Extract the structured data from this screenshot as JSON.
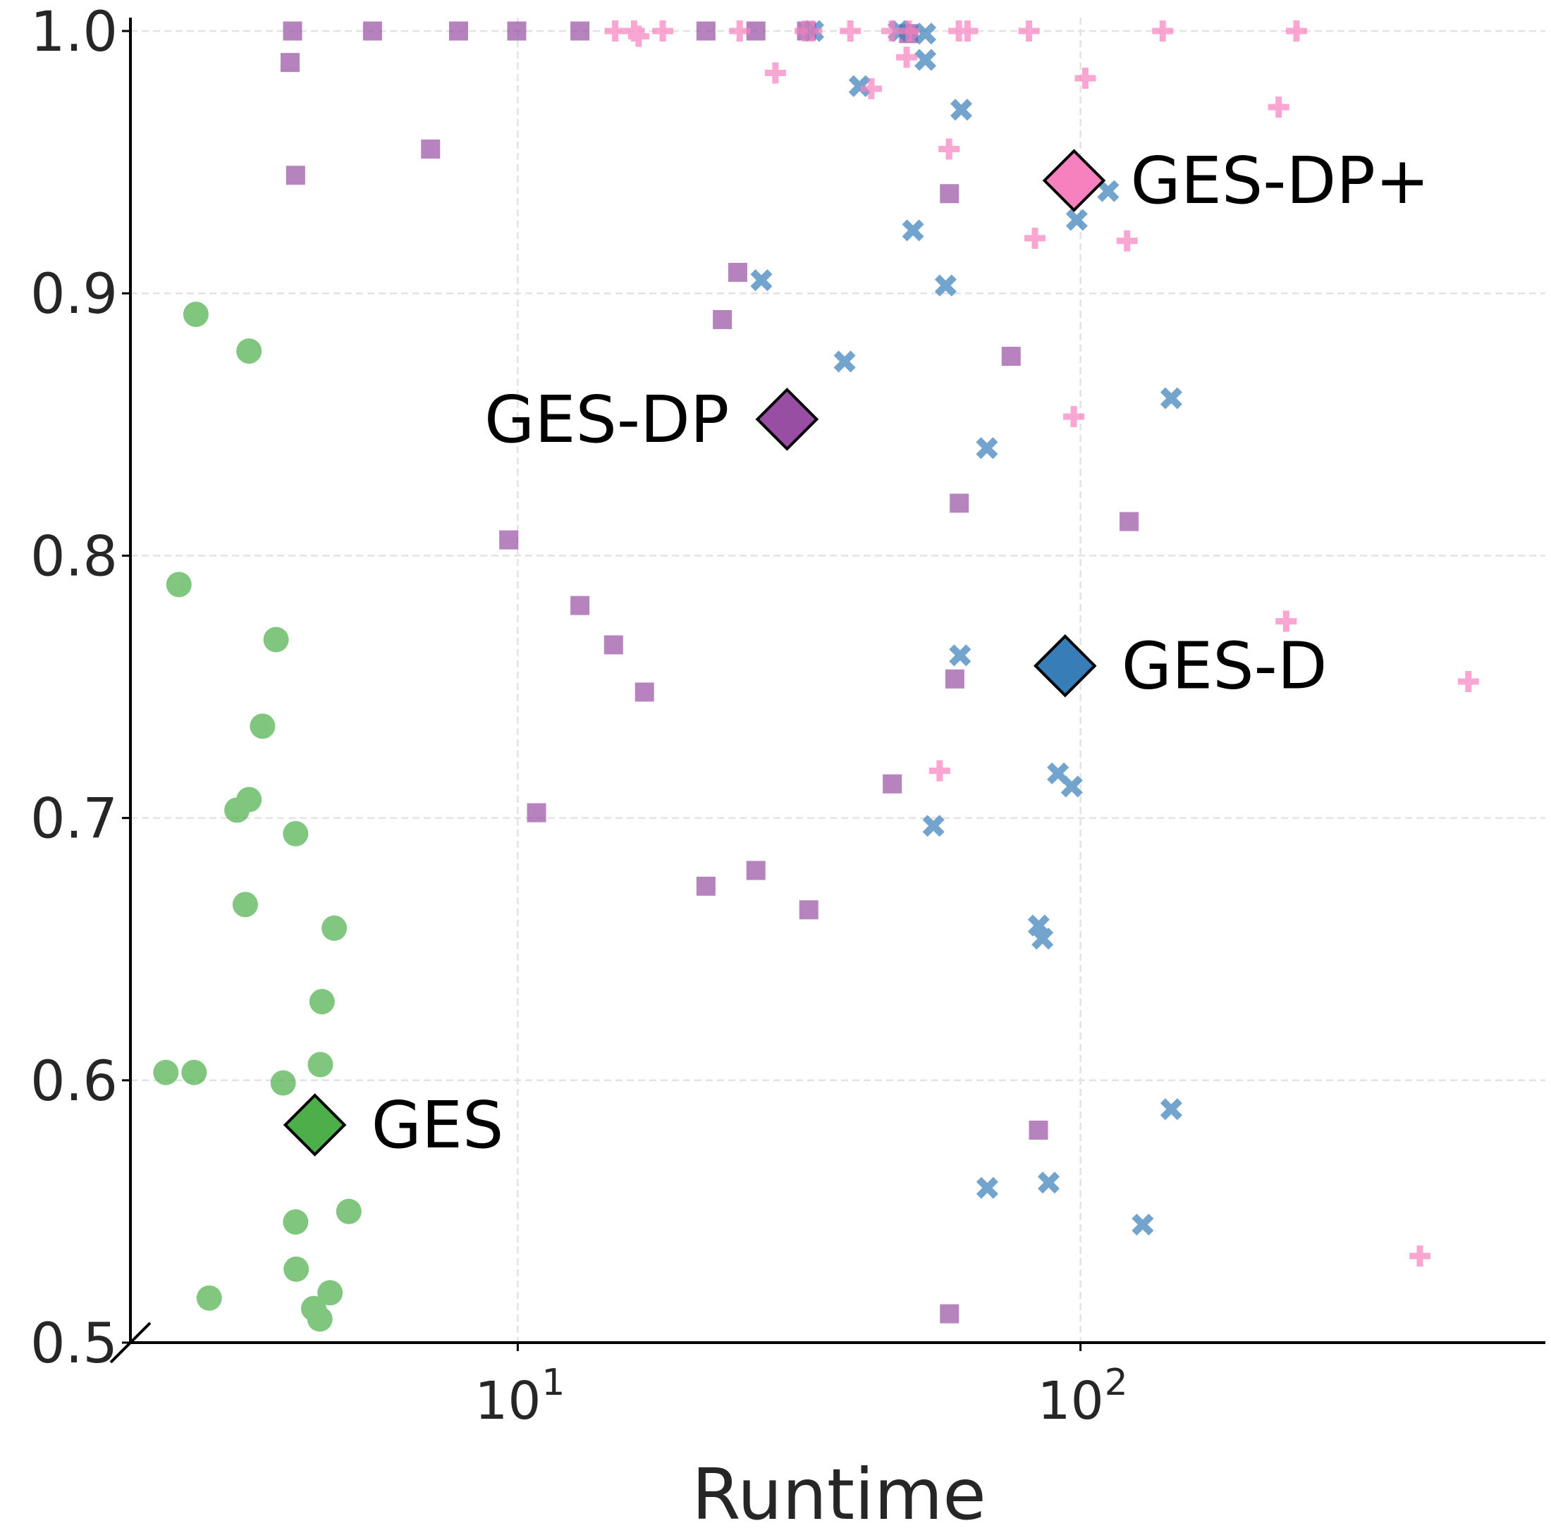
{
  "chart_data": {
    "type": "scatter",
    "title": "",
    "xlabel": "Runtime",
    "ylabel": "",
    "xscale": "log",
    "xlim": [
      2.05,
      670
    ],
    "ylim": [
      0.5,
      1.0
    ],
    "grid": true,
    "x_ticks": [
      {
        "value": 10,
        "base": "10",
        "exp": "1"
      },
      {
        "value": 100,
        "base": "10",
        "exp": "2"
      }
    ],
    "y_ticks": [
      {
        "value": 0.5,
        "label": "0.5"
      },
      {
        "value": 0.6,
        "label": "0.6"
      },
      {
        "value": 0.7,
        "label": "0.7"
      },
      {
        "value": 0.8,
        "label": "0.8"
      },
      {
        "value": 0.9,
        "label": "0.9"
      },
      {
        "value": 1.0,
        "label": "1.0"
      }
    ],
    "series": [
      {
        "key": "ges",
        "marker": "circle",
        "color": "#4daf4a",
        "points": [
          [
            2.68,
            0.892
          ],
          [
            3.33,
            0.878
          ],
          [
            2.5,
            0.789
          ],
          [
            3.72,
            0.768
          ],
          [
            3.52,
            0.735
          ],
          [
            3.17,
            0.703
          ],
          [
            3.33,
            0.707
          ],
          [
            4.03,
            0.694
          ],
          [
            3.28,
            0.667
          ],
          [
            4.72,
            0.658
          ],
          [
            4.49,
            0.63
          ],
          [
            2.37,
            0.603
          ],
          [
            2.66,
            0.603
          ],
          [
            3.83,
            0.599
          ],
          [
            4.46,
            0.606
          ],
          [
            4.03,
            0.546
          ],
          [
            5.01,
            0.55
          ],
          [
            4.04,
            0.528
          ],
          [
            2.83,
            0.517
          ],
          [
            4.64,
            0.519
          ],
          [
            4.34,
            0.513
          ],
          [
            4.45,
            0.509
          ]
        ]
      },
      {
        "key": "ges-dp",
        "marker": "square",
        "color": "#984ea3",
        "points": [
          [
            3.98,
            1.0
          ],
          [
            5.52,
            1.0
          ],
          [
            7.85,
            1.0
          ],
          [
            9.96,
            1.0
          ],
          [
            12.9,
            1.0
          ],
          [
            21.6,
            1.0
          ],
          [
            26.5,
            1.0
          ],
          [
            32.6,
            1.0
          ],
          [
            3.94,
            0.988
          ],
          [
            4.03,
            0.945
          ],
          [
            7.0,
            0.955
          ],
          [
            58.5,
            0.938
          ],
          [
            24.6,
            0.908
          ],
          [
            23.1,
            0.89
          ],
          [
            75.3,
            0.876
          ],
          [
            9.64,
            0.806
          ],
          [
            60.9,
            0.82
          ],
          [
            122,
            0.813
          ],
          [
            12.9,
            0.781
          ],
          [
            14.8,
            0.766
          ],
          [
            16.8,
            0.748
          ],
          [
            59.8,
            0.753
          ],
          [
            10.8,
            0.702
          ],
          [
            46.3,
            0.713
          ],
          [
            21.6,
            0.674
          ],
          [
            26.5,
            0.68
          ],
          [
            32.9,
            0.665
          ],
          [
            84.2,
            0.581
          ],
          [
            58.5,
            0.511
          ],
          [
            49.5,
            0.999
          ]
        ]
      },
      {
        "key": "ges-d",
        "marker": "x",
        "color": "#377eb8",
        "points": [
          [
            33.5,
            1.0
          ],
          [
            47.5,
            1.0
          ],
          [
            53.0,
            0.999
          ],
          [
            53.0,
            0.989
          ],
          [
            40.5,
            0.979
          ],
          [
            61.4,
            0.97
          ],
          [
            112,
            0.939
          ],
          [
            98.5,
            0.928
          ],
          [
            50.4,
            0.924
          ],
          [
            27.1,
            0.905
          ],
          [
            57.6,
            0.903
          ],
          [
            38.1,
            0.874
          ],
          [
            145,
            0.86
          ],
          [
            68.2,
            0.841
          ],
          [
            61.1,
            0.762
          ],
          [
            91.2,
            0.717
          ],
          [
            96.5,
            0.712
          ],
          [
            54.8,
            0.697
          ],
          [
            84.3,
            0.659
          ],
          [
            85.6,
            0.654
          ],
          [
            145,
            0.589
          ],
          [
            68.3,
            0.559
          ],
          [
            87.8,
            0.561
          ],
          [
            129,
            0.545
          ],
          [
            47.8,
            1.0
          ]
        ]
      },
      {
        "key": "ges-dp-plus",
        "marker": "plus",
        "color": "#f781bf",
        "points": [
          [
            14.9,
            1.0
          ],
          [
            16.1,
            1.0
          ],
          [
            16.4,
            0.998
          ],
          [
            18.1,
            1.0
          ],
          [
            24.8,
            1.0
          ],
          [
            32.4,
            1.0
          ],
          [
            33.3,
            1.0
          ],
          [
            39.0,
            1.0
          ],
          [
            46.2,
            1.0
          ],
          [
            60.8,
            1.0
          ],
          [
            63.0,
            1.0
          ],
          [
            81.0,
            1.0
          ],
          [
            140,
            1.0
          ],
          [
            242,
            1.0
          ],
          [
            28.7,
            0.984
          ],
          [
            49.1,
            0.99
          ],
          [
            42.5,
            0.978
          ],
          [
            102,
            0.982
          ],
          [
            225,
            0.971
          ],
          [
            58.4,
            0.955
          ],
          [
            83.0,
            0.921
          ],
          [
            121,
            0.92
          ],
          [
            97.3,
            0.853
          ],
          [
            232,
            0.775
          ],
          [
            489,
            0.752
          ],
          [
            56.2,
            0.718
          ],
          [
            401,
            0.533
          ],
          [
            49.5,
            1.0
          ]
        ]
      }
    ],
    "highlights": [
      {
        "key": "ges",
        "label": "GES",
        "x": 4.36,
        "y": 0.583,
        "color": "#4daf4a",
        "label_side": "right"
      },
      {
        "key": "ges-dp",
        "label": "GES-DP",
        "x": 30.1,
        "y": 0.852,
        "color": "#984ea3",
        "label_side": "left"
      },
      {
        "key": "ges-d",
        "label": "GES-D",
        "x": 93.9,
        "y": 0.758,
        "color": "#377eb8",
        "label_side": "right"
      },
      {
        "key": "ges-dp-plus",
        "label": "GES-DP+",
        "x": 97.4,
        "y": 0.943,
        "color": "#f781bf",
        "label_side": "right"
      }
    ]
  }
}
